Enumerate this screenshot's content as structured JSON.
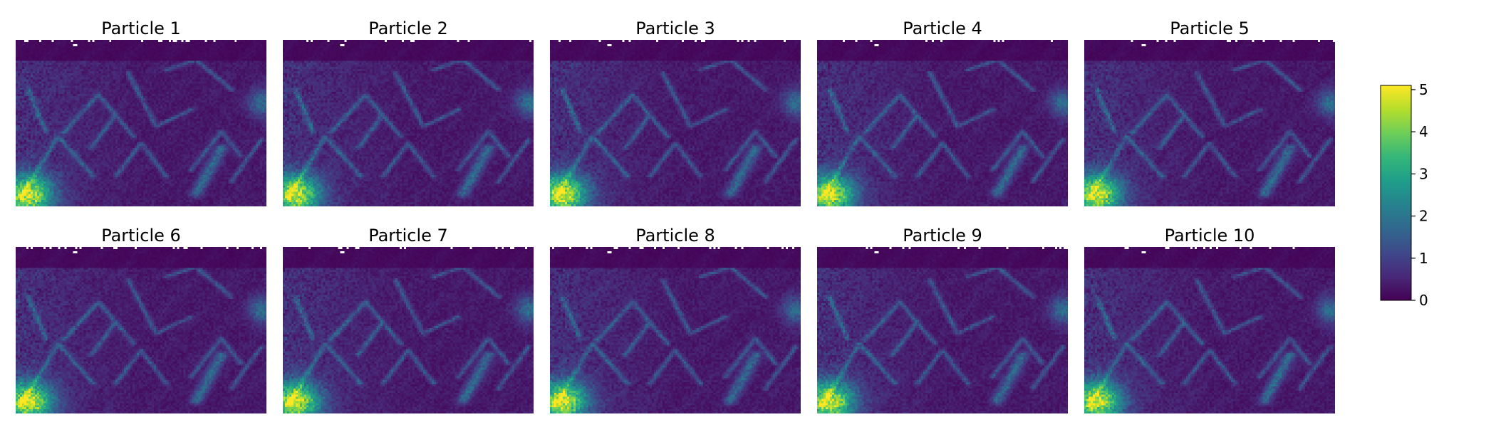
{
  "chart_data": {
    "type": "heatmap",
    "colormap": "viridis",
    "colors": {
      "cmap_stops": [
        "#440154",
        "#482878",
        "#3e4989",
        "#31688e",
        "#26828e",
        "#1f9e89",
        "#35b779",
        "#6ece58",
        "#b5de2b",
        "#fde725"
      ],
      "missing_pixel": "#ffffff"
    },
    "layout": {
      "rows": 2,
      "cols": 5
    },
    "panels": [
      {
        "title": "Particle 1"
      },
      {
        "title": "Particle 2"
      },
      {
        "title": "Particle 3"
      },
      {
        "title": "Particle 4"
      },
      {
        "title": "Particle 5"
      },
      {
        "title": "Particle 6"
      },
      {
        "title": "Particle 7"
      },
      {
        "title": "Particle 8"
      },
      {
        "title": "Particle 9"
      },
      {
        "title": "Particle 10"
      }
    ],
    "colorbar": {
      "vmin": 0,
      "vmax": 5.1,
      "ticks": [
        0,
        1,
        2,
        3,
        4,
        5
      ],
      "tick_labels": [
        "0",
        "1",
        "2",
        "3",
        "4",
        "5"
      ]
    },
    "axes_visible": false
  }
}
